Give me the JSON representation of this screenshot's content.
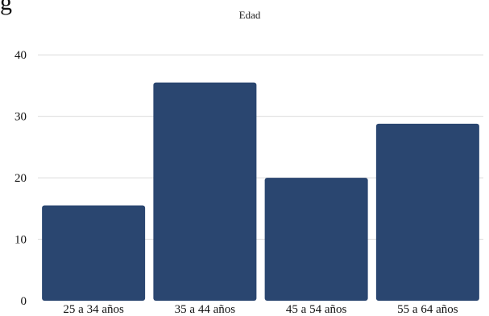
{
  "heading_fragment": "g",
  "chart_data": {
    "type": "bar",
    "title": "Edad",
    "categories": [
      "25 a 34 años",
      "35 a 44 años",
      "45 a 54 años",
      "55 a 64 años"
    ],
    "values": [
      15.5,
      35.5,
      20,
      28.8
    ],
    "ylim": [
      0,
      45
    ],
    "yticks": [
      0,
      10,
      20,
      30,
      40
    ],
    "xlabel": "",
    "ylabel": "",
    "grid": true,
    "colors": {
      "bar": "#2a4670",
      "grid": "#dcdcdc"
    }
  }
}
